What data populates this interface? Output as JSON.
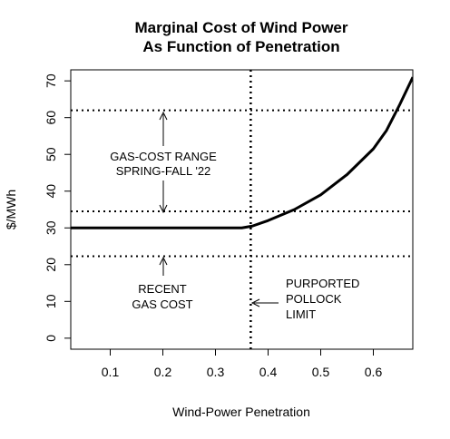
{
  "chart_data": {
    "type": "line",
    "title_line1": "Marginal Cost of Wind Power",
    "title_line2": "As Function of Penetration",
    "xlabel": "Wind-Power Penetration",
    "ylabel": "$/MWh",
    "xlim": [
      0.025,
      0.675
    ],
    "ylim": [
      -3,
      73
    ],
    "x_ticks": [
      0.1,
      0.2,
      0.3,
      0.4,
      0.5,
      0.6
    ],
    "x_tick_labels": [
      "0.1",
      "0.2",
      "0.3",
      "0.4",
      "0.5",
      "0.6"
    ],
    "y_ticks": [
      0,
      10,
      20,
      30,
      40,
      50,
      60,
      70
    ],
    "y_tick_labels": [
      "0",
      "10",
      "20",
      "30",
      "40",
      "50",
      "60",
      "70"
    ],
    "grid": false,
    "series": [
      {
        "color": "#000000",
        "x": [
          0.025,
          0.1,
          0.2,
          0.3,
          0.35,
          0.37,
          0.4,
          0.45,
          0.5,
          0.55,
          0.6,
          0.625,
          0.65,
          0.675
        ],
        "y": [
          30,
          30,
          30,
          30,
          30,
          30.5,
          32,
          35,
          39,
          44.5,
          51.5,
          56.5,
          63.5,
          71
        ]
      }
    ],
    "reference_lines": {
      "horizontal": [
        62,
        34.5,
        22.3
      ],
      "vertical": [
        0.367
      ]
    },
    "annotations": {
      "gas_range_line1": "GAS-COST RANGE",
      "gas_range_line2": "SPRING-FALL '22",
      "recent_line1": "RECENT",
      "recent_line2": "GAS COST",
      "pollock_line1": "PURPORTED",
      "pollock_line2": "POLLOCK",
      "pollock_line3": "LIMIT"
    }
  }
}
